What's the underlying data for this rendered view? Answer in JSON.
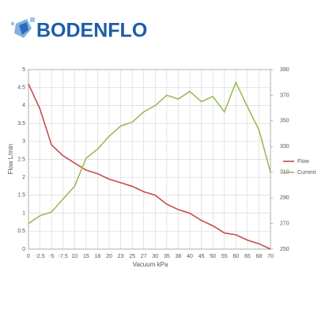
{
  "logo": {
    "text": "BODENFLO"
  },
  "chart_data": {
    "type": "line",
    "ylabel": "Flow L/min",
    "xlabel": "Vacuum kPa",
    "categories": [
      "0",
      "-2.5",
      "-5",
      "-7.5",
      "10",
      "15",
      "18",
      "20",
      "23",
      "25",
      "27",
      "30",
      "35",
      "38",
      "40",
      "45",
      "50",
      "55",
      "60",
      "65",
      "68",
      "70"
    ],
    "series": [
      {
        "name": "Flow",
        "color": "#c0504d",
        "values": [
          4.6,
          3.9,
          2.9,
          2.6,
          2.4,
          2.2,
          2.1,
          1.95,
          1.85,
          1.75,
          1.6,
          1.5,
          1.25,
          1.1,
          1.0,
          0.8,
          0.65,
          0.45,
          0.4,
          0.25,
          0.15,
          0.0
        ]
      },
      {
        "name": "Current",
        "color": "#9bbb59",
        "axis": "y2",
        "values": [
          270,
          276,
          279,
          289,
          299,
          321,
          328,
          338,
          346,
          349,
          357,
          362,
          370,
          367,
          373,
          365,
          369,
          357,
          380,
          361,
          343,
          310
        ]
      }
    ],
    "ylim": [
      0,
      5
    ],
    "yticks": [
      0,
      0.5,
      1,
      1.5,
      2,
      2.5,
      3,
      3.5,
      4,
      4.5,
      5
    ],
    "y2lim": [
      250,
      390
    ],
    "y2ticks": [
      250,
      270,
      290,
      310,
      330,
      350,
      370,
      390
    ],
    "grid": true
  }
}
